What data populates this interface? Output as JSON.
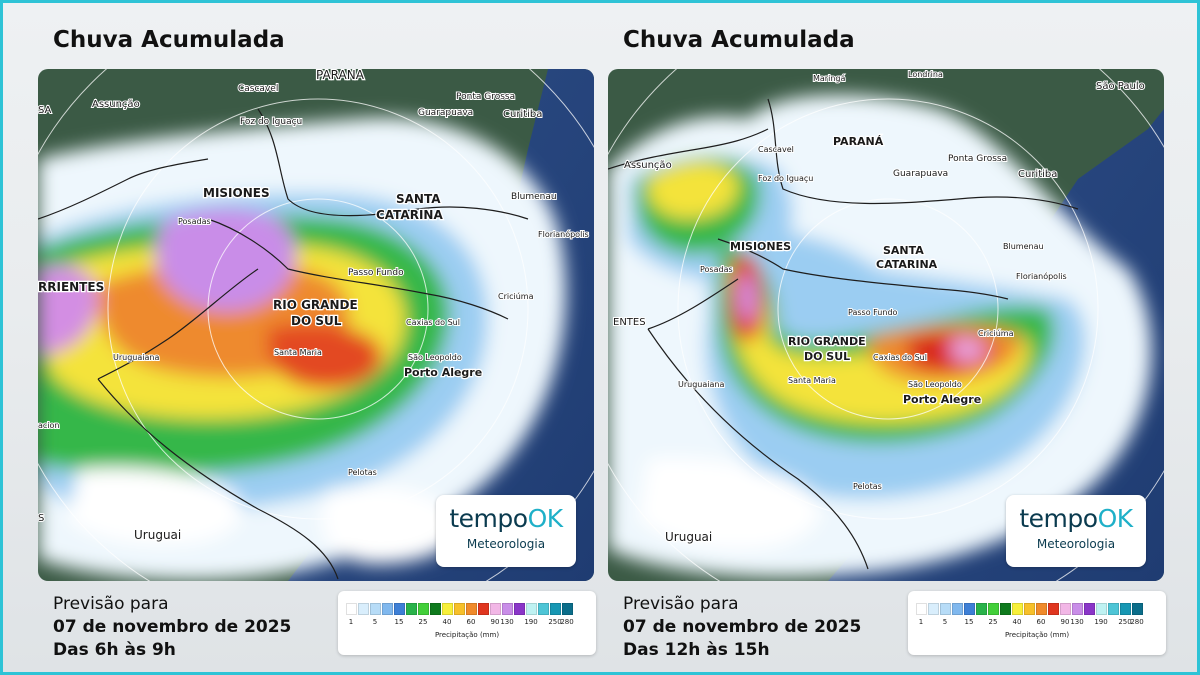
{
  "panels": [
    {
      "title": "Chuva Acumulada",
      "forecast_label": "Previsão para",
      "date": "07 de novembro de 2025",
      "time_range": "Das 6h às 9h",
      "labels": {
        "states": [
          "PARANA",
          "MISIONES",
          "SANTA",
          "CATARINA",
          "RIO GRANDE",
          "DO SUL",
          "RRIENTES"
        ],
        "cities": [
          "Assunção",
          "Cascavel",
          "Foz do Iguaçu",
          "Ponta Grossa",
          "Guarapuava",
          "Curitiba",
          "Blumenau",
          "Florianópolis",
          "Posadas",
          "Passo Fundo",
          "Criciúma",
          "Caxias do Sul",
          "Santa Maria",
          "Uruguaiana",
          "São Leopoldo",
          "Porto Alegre",
          "Pelotas",
          "SA",
          "acion",
          "S"
        ],
        "country": "Uruguai"
      }
    },
    {
      "title": "Chuva Acumulada",
      "forecast_label": "Previsão para",
      "date": "07 de novembro de 2025",
      "time_range": "Das 12h às 15h",
      "labels": {
        "states": [
          "PARANÁ",
          "MISIONES",
          "SANTA",
          "CATARINA",
          "RIO GRANDE",
          "DO SUL",
          "ENTES"
        ],
        "cities": [
          "Maringá",
          "Londrina",
          "São Paulo",
          "Cascavel",
          "Foz do Iguaçu",
          "Assunção",
          "Ponta Grossa",
          "Guarapuava",
          "Curitiba",
          "Blumenau",
          "Florianópolis",
          "Posadas",
          "Passo Fundo",
          "Criciúma",
          "Caxias do Sul",
          "São Leopoldo",
          "Porto Alegre",
          "Santa Maria",
          "Uruguaiana",
          "Pelotas"
        ],
        "country": "Uruguai"
      }
    }
  ],
  "logo": {
    "brand_a": "tempo",
    "brand_b": "OK",
    "subtitle": "Meteorologia"
  },
  "legend": {
    "unit": "Precipitação (mm)",
    "tick_labels": [
      "1",
      "5",
      "15",
      "25",
      "40",
      "60",
      "90",
      "130",
      "190",
      "250",
      "280"
    ],
    "colors": [
      "#ffffff",
      "#d9eefc",
      "#b7dcf7",
      "#80b8ee",
      "#3d7fd6",
      "#29b34a",
      "#43cf3a",
      "#0f7a1d",
      "#f7f03a",
      "#f7c02a",
      "#f08a2a",
      "#e0361f",
      "#f2b7e6",
      "#c98de8",
      "#8a35c8",
      "#bff2f2",
      "#4ec5d6",
      "#1797b3",
      "#0b6e8a"
    ]
  }
}
